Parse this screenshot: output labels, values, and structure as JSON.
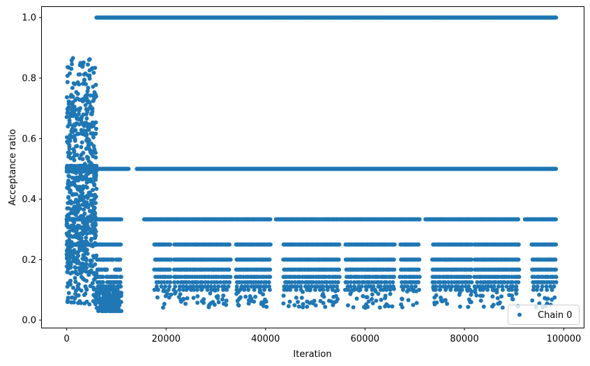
{
  "chart_data": {
    "type": "scatter",
    "title": "",
    "xlabel": "Iteration",
    "ylabel": "Acceptance ratio",
    "xlim": [
      -5000,
      104000
    ],
    "ylim": [
      -0.025,
      1.035
    ],
    "xticks": [
      0,
      20000,
      40000,
      60000,
      80000,
      100000
    ],
    "xtick_labels": [
      "0",
      "20000",
      "40000",
      "60000",
      "80000",
      "100000"
    ],
    "yticks": [
      0.0,
      0.2,
      0.4,
      0.6,
      0.8,
      1.0
    ],
    "ytick_labels": [
      "0.0",
      "0.2",
      "0.4",
      "0.6",
      "0.8",
      "1.0"
    ],
    "grid": false,
    "legend_position": "bottom-right",
    "series": [
      {
        "name": "Chain 0",
        "color": "#1f77b4",
        "marker": "circle",
        "x_range": [
          0,
          98500
        ],
        "regimes": [
          {
            "x_range": [
              0,
              6000
            ],
            "y_range": [
              0.03,
              0.88
            ],
            "description_levels": [
              0.5,
              0.333,
              0.25
            ]
          },
          {
            "x_range": [
              6000,
              98500
            ],
            "y_value": 1.0
          },
          {
            "x_range": [
              6000,
              11000
            ],
            "y_range": [
              0.02,
              0.2
            ]
          },
          {
            "x_range": [
              6000,
              98500
            ],
            "discrete_levels": [
              0.5,
              0.333,
              0.25,
              0.2,
              0.167,
              0.143,
              0.125,
              0.111,
              0.1
            ]
          }
        ],
        "gap_ranges": [
          [
            11000,
            15000
          ]
        ]
      }
    ]
  }
}
